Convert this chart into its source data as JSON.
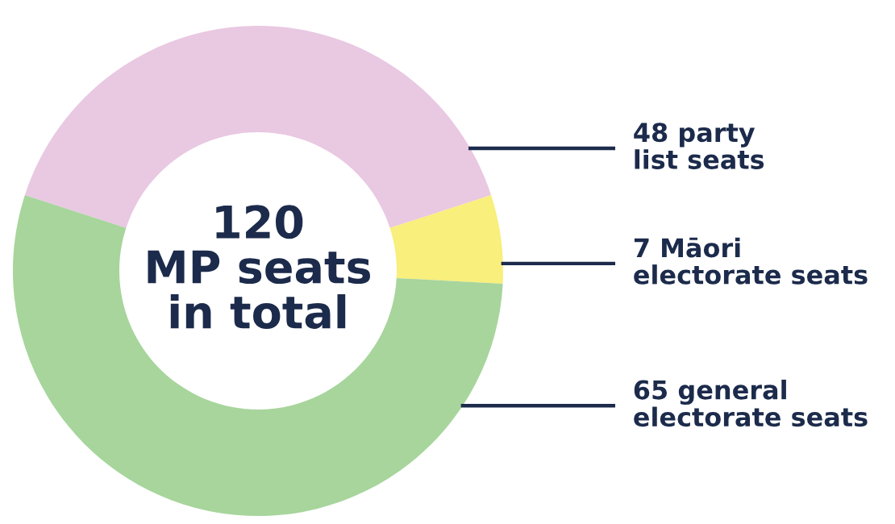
{
  "chart_data": {
    "type": "donut",
    "title": "120\nMP seats\nin total",
    "categories": [
      "48 party\nlist seats",
      "7 Māori\nelectorate seats",
      "65 general\nelectorate seats"
    ],
    "values": [
      48,
      7,
      65
    ],
    "colors": [
      "#e9c8e2",
      "#f8ef7c",
      "#a7d59c"
    ],
    "legend": false
  }
}
